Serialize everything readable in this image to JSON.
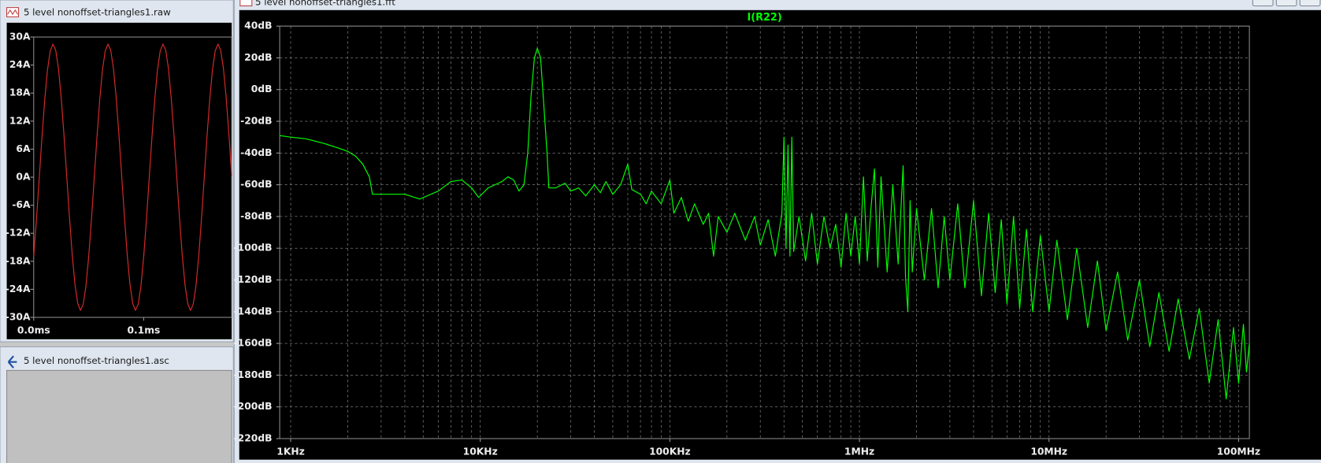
{
  "windows": [
    {
      "title": "5 level nonoffset-triangles1.raw"
    },
    {
      "title": "5 level nonoffset-triangles1.asc"
    },
    {
      "title": "5 level nonoffset-triangles1.fft"
    }
  ],
  "chart_data": [
    {
      "type": "line",
      "color": "#d42a2a",
      "grid": false,
      "xlim": [
        0,
        0.18
      ],
      "ylim": [
        -30,
        30
      ],
      "xticks": [
        {
          "value": 0,
          "label": "0.0ms"
        },
        {
          "value": 0.1,
          "label": "0.1ms"
        }
      ],
      "yticks": [
        {
          "value": 30,
          "label": "30A"
        },
        {
          "value": 24,
          "label": "24A"
        },
        {
          "value": 18,
          "label": "18A"
        },
        {
          "value": 12,
          "label": "12A"
        },
        {
          "value": 6,
          "label": "6A"
        },
        {
          "value": 0,
          "label": "0A"
        },
        {
          "value": -6,
          "label": "-6A"
        },
        {
          "value": -12,
          "label": "-12A"
        },
        {
          "value": -18,
          "label": "-18A"
        },
        {
          "value": -24,
          "label": "-24A"
        },
        {
          "value": -30,
          "label": "-30A"
        }
      ],
      "x": [
        0,
        0.0025,
        0.005,
        0.0075,
        0.01,
        0.0125,
        0.015,
        0.0175,
        0.02,
        0.0225,
        0.025,
        0.0275,
        0.03,
        0.0325,
        0.035,
        0.0375,
        0.04,
        0.0425,
        0.045,
        0.0475,
        0.05,
        0.0525,
        0.055,
        0.0575,
        0.06,
        0.0625,
        0.065,
        0.0675,
        0.07,
        0.0725,
        0.075,
        0.0775,
        0.08,
        0.0825,
        0.085,
        0.0875,
        0.09,
        0.0925,
        0.095,
        0.0975,
        0.1,
        0.1025,
        0.105,
        0.1075,
        0.11,
        0.1125,
        0.115,
        0.1175,
        0.12,
        0.1225,
        0.125,
        0.1275,
        0.13,
        0.1325,
        0.135,
        0.1375,
        0.14,
        0.1425,
        0.145,
        0.1475,
        0.15,
        0.1525,
        0.155,
        0.1575,
        0.16,
        0.1625,
        0.165,
        0.1675,
        0.17,
        0.1725,
        0.175,
        0.1775,
        0.18
      ],
      "values": [
        -17,
        -9.1,
        -0.3,
        8.5,
        16.5,
        22.9,
        27,
        28.5,
        27.2,
        23.3,
        17,
        9.1,
        0.3,
        -8.5,
        -16.5,
        -22.9,
        -27,
        -28.5,
        -27.2,
        -23.3,
        -17,
        -9.1,
        -0.3,
        8.5,
        16.5,
        22.9,
        27,
        28.5,
        27.2,
        23.3,
        17,
        9.1,
        0.3,
        -8.5,
        -16.5,
        -22.9,
        -27,
        -28.5,
        -27.2,
        -23.3,
        -17,
        -9.1,
        -0.3,
        8.5,
        16.5,
        22.9,
        27,
        28.5,
        27.2,
        23.3,
        17,
        9.1,
        0.3,
        -8.5,
        -16.5,
        -22.9,
        -27,
        -28.5,
        -27.2,
        -23.3,
        -17,
        -9.1,
        -0.3,
        8.5,
        16.5,
        22.9,
        27,
        28.5,
        27.2,
        23.3,
        17,
        9.1,
        0.3
      ]
    },
    {
      "type": "line",
      "title": "I(R22)",
      "color": "#00ff00",
      "xscale": "log",
      "grid": true,
      "minor_grid": true,
      "xlim": [
        875,
        114000000
      ],
      "ylim": [
        -220,
        40
      ],
      "xticks": [
        {
          "value": 1000,
          "label": "1KHz"
        },
        {
          "value": 10000,
          "label": "10KHz"
        },
        {
          "value": 100000,
          "label": "100KHz"
        },
        {
          "value": 1000000,
          "label": "1MHz"
        },
        {
          "value": 10000000,
          "label": "10MHz"
        },
        {
          "value": 100000000,
          "label": "100MHz"
        }
      ],
      "yticks": [
        {
          "value": 40,
          "label": "40dB"
        },
        {
          "value": 20,
          "label": "20dB"
        },
        {
          "value": 0,
          "label": "0dB"
        },
        {
          "value": -20,
          "label": "-20dB"
        },
        {
          "value": -40,
          "label": "-40dB"
        },
        {
          "value": -60,
          "label": "-60dB"
        },
        {
          "value": -80,
          "label": "-80dB"
        },
        {
          "value": -100,
          "label": "-100dB"
        },
        {
          "value": -120,
          "label": "-120dB"
        },
        {
          "value": -140,
          "label": "-140dB"
        },
        {
          "value": -160,
          "label": "-160dB"
        },
        {
          "value": -180,
          "label": "-180dB"
        },
        {
          "value": -200,
          "label": "-200dB"
        },
        {
          "value": -220,
          "label": "-220dB"
        }
      ],
      "x": [
        875,
        1000,
        1200,
        1500,
        1800,
        2000,
        2200,
        2400,
        2600,
        2700,
        3000,
        4000,
        4800,
        6000,
        7000,
        8000,
        9000,
        9800,
        11000,
        13000,
        14000,
        15000,
        16000,
        17000,
        17800,
        18500,
        19300,
        20000,
        20800,
        21500,
        22500,
        23000,
        25000,
        28000,
        30000,
        33000,
        36000,
        40000,
        43000,
        46000,
        50000,
        55000,
        60000,
        63000,
        70000,
        75000,
        80000,
        90000,
        100000,
        105000,
        115000,
        125000,
        135000,
        150000,
        160000,
        170000,
        180000,
        200000,
        220000,
        250000,
        280000,
        300000,
        330000,
        360000,
        390000,
        400000,
        410000,
        420000,
        430000,
        440000,
        450000,
        480000,
        520000,
        560000,
        600000,
        650000,
        700000,
        750000,
        800000,
        850000,
        900000,
        950000,
        1000000,
        1050000,
        1100000,
        1150000,
        1200000,
        1250000,
        1300000,
        1400000,
        1500000,
        1600000,
        1700000,
        1750000,
        1800000,
        1850000,
        1900000,
        2000000,
        2200000,
        2400000,
        2600000,
        2800000,
        3000000,
        3300000,
        3600000,
        4000000,
        4400000,
        4800000,
        5200000,
        5600000,
        6000000,
        6500000,
        7000000,
        7600000,
        8200000,
        9000000,
        10000000,
        11000000,
        12500000,
        14000000,
        16000000,
        18000000,
        20000000,
        23000000,
        26000000,
        30000000,
        34000000,
        38000000,
        43000000,
        48000000,
        55000000,
        62000000,
        70000000,
        78000000,
        86000000,
        94000000,
        100000000,
        106000000,
        110000000,
        114000000
      ],
      "values": [
        -29,
        -30,
        -31,
        -34,
        -37,
        -39,
        -42,
        -47,
        -55,
        -66,
        -66,
        -66,
        -69,
        -64,
        -58,
        -57,
        -62,
        -68,
        -62,
        -58,
        -55,
        -57,
        -64,
        -60,
        -40,
        -5,
        20,
        26,
        20,
        -5,
        -40,
        -62,
        -62,
        -59,
        -64,
        -62,
        -67,
        -60,
        -65,
        -58,
        -66,
        -60,
        -47,
        -63,
        -66,
        -72,
        -64,
        -72,
        -57,
        -78,
        -68,
        -83,
        -72,
        -85,
        -78,
        -105,
        -80,
        -90,
        -78,
        -95,
        -80,
        -98,
        -82,
        -105,
        -78,
        -30,
        -100,
        -35,
        -105,
        -30,
        -102,
        -80,
        -108,
        -78,
        -110,
        -80,
        -100,
        -85,
        -112,
        -78,
        -105,
        -80,
        -110,
        -55,
        -108,
        -75,
        -50,
        -112,
        -55,
        -115,
        -60,
        -110,
        -48,
        -118,
        -140,
        -70,
        -115,
        -75,
        -120,
        -75,
        -125,
        -80,
        -120,
        -72,
        -125,
        -70,
        -130,
        -78,
        -128,
        -82,
        -135,
        -80,
        -138,
        -88,
        -140,
        -92,
        -140,
        -95,
        -145,
        -100,
        -150,
        -108,
        -152,
        -115,
        -158,
        -120,
        -162,
        -128,
        -165,
        -132,
        -170,
        -138,
        -185,
        -145,
        -195,
        -150,
        -185,
        -148,
        -178,
        -160
      ]
    }
  ]
}
